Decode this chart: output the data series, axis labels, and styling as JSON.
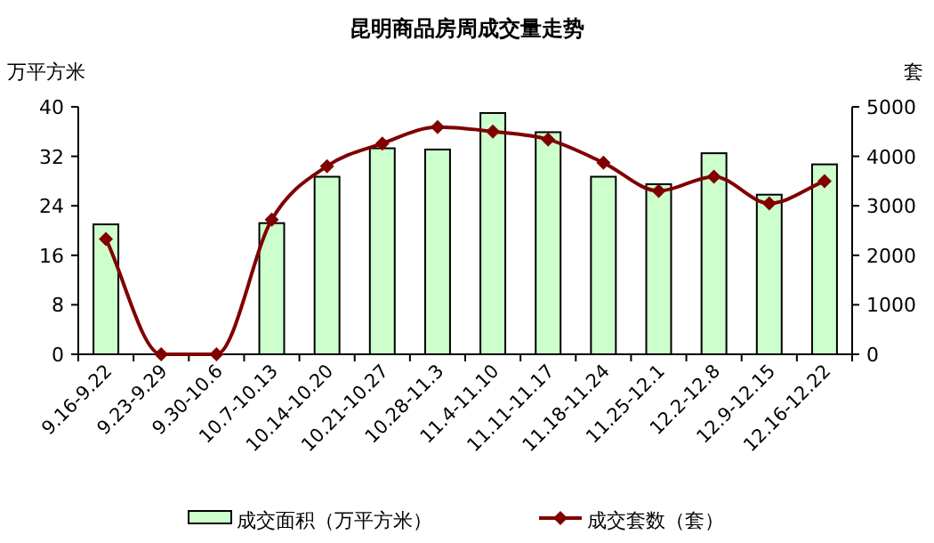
{
  "chart_data": {
    "type": "bar",
    "title": "昆明商品房周成交量走势",
    "ylabel": "万平方米",
    "y2label": "套",
    "categories": [
      "9.16-9.22",
      "9.23-9.29",
      "9.30-10.6",
      "10.7-10.13",
      "10.14-10.20",
      "10.21-10.27",
      "10.28-11.3",
      "11.4-11.10",
      "11.11-11.17",
      "11.18-11.24",
      "11.25-12.1",
      "12.2-12.8",
      "12.9-12.15",
      "12.16-12.22"
    ],
    "series": [
      {
        "name": "成交面积（万平方米）",
        "color": "#ccffcc",
        "values": [
          21,
          0,
          0,
          21.2,
          28.7,
          33.3,
          33.1,
          39,
          35.9,
          28.7,
          27.5,
          32.5,
          25.8,
          30.7
        ]
      },
      {
        "name": "成交套数（套）",
        "type": "line",
        "axis": "y2",
        "color": "#800000",
        "marker": "diamond",
        "values": [
          2330,
          0,
          0,
          2720,
          3800,
          4260,
          4590,
          4500,
          4340,
          3870,
          3300,
          3590,
          3050,
          3500
        ]
      }
    ],
    "ylim": [
      0,
      40
    ],
    "yticks": [
      0,
      8,
      16,
      24,
      32,
      40
    ],
    "y2lim": [
      0,
      5000
    ],
    "y2ticks": [
      0,
      1000,
      2000,
      3000,
      4000,
      5000
    ],
    "grid": false,
    "legend": "bottom"
  }
}
